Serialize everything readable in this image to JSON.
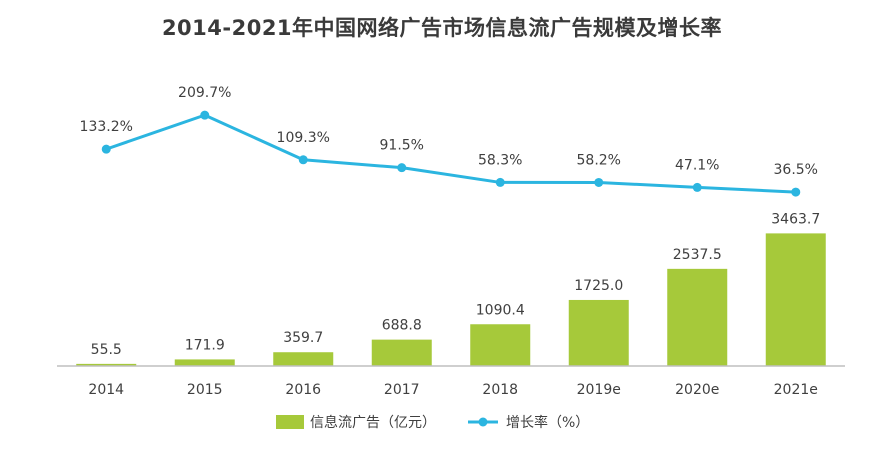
{
  "chart_data": {
    "type": "bar",
    "title": "2014-2021年中国网络广告市场信息流广告规模及增长率",
    "categories": [
      "2014",
      "2015",
      "2016",
      "2017",
      "2018",
      "2019e",
      "2020e",
      "2021e"
    ],
    "series": [
      {
        "name": "信息流广告（亿元）",
        "type": "bar",
        "values": [
          55.5,
          171.9,
          359.7,
          688.8,
          1090.4,
          1725.0,
          2537.5,
          3463.7
        ],
        "labels": [
          "55.5",
          "171.9",
          "359.7",
          "688.8",
          "1090.4",
          "1725.0",
          "2537.5",
          "3463.7"
        ]
      },
      {
        "name": "增长率（%）",
        "type": "line",
        "values": [
          133.2,
          209.7,
          109.3,
          91.5,
          58.3,
          58.2,
          47.1,
          36.5
        ],
        "labels": [
          "133.2%",
          "209.7%",
          "109.3%",
          "91.5%",
          "58.3%",
          "58.2%",
          "47.1%",
          "36.5%"
        ]
      }
    ],
    "colors": {
      "bar": "#a6c93a",
      "line": "#2bb5e0",
      "axis": "#bfbfbf"
    },
    "legend_position": "bottom",
    "grid": false
  }
}
